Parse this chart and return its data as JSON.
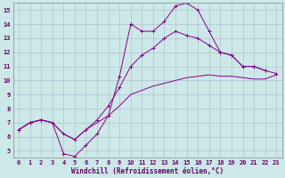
{
  "xlabel": "Windchill (Refroidissement éolien,°C)",
  "bg_color": "#cce8e8",
  "line_color": "#880088",
  "grid_color": "#aabbcc",
  "xlim": [
    -0.5,
    23.5
  ],
  "ylim": [
    4.5,
    15.5
  ],
  "xticks": [
    0,
    1,
    2,
    3,
    4,
    5,
    6,
    7,
    8,
    9,
    10,
    11,
    12,
    13,
    14,
    15,
    16,
    17,
    18,
    19,
    20,
    21,
    22,
    23
  ],
  "yticks": [
    5,
    6,
    7,
    8,
    9,
    10,
    11,
    12,
    13,
    14,
    15
  ],
  "line1_x": [
    0,
    1,
    2,
    3,
    4,
    5,
    6,
    7,
    8,
    9,
    10,
    11,
    12,
    13,
    14,
    15,
    16,
    17,
    18,
    19,
    20,
    21,
    22
  ],
  "line1_y": [
    6.5,
    7.0,
    7.2,
    7.0,
    4.8,
    4.6,
    5.4,
    6.2,
    7.5,
    10.3,
    14.0,
    13.5,
    13.5,
    14.2,
    15.3,
    15.5,
    15.0,
    13.5,
    12.0,
    11.8,
    11.0,
    11.0,
    10.7
  ],
  "line2_x": [
    0,
    1,
    2,
    3,
    4,
    5,
    6,
    7,
    8,
    9,
    10,
    11,
    12,
    13,
    14,
    15,
    16,
    17,
    18,
    19,
    20,
    21,
    22,
    23
  ],
  "line2_y": [
    6.5,
    7.0,
    7.2,
    7.0,
    6.2,
    5.8,
    6.5,
    7.2,
    8.2,
    9.5,
    11.0,
    11.8,
    12.3,
    13.0,
    13.5,
    13.2,
    13.0,
    12.5,
    12.0,
    11.8,
    11.0,
    11.0,
    10.7,
    10.5
  ],
  "line3_x": [
    0,
    1,
    2,
    3,
    4,
    5,
    6,
    7,
    8,
    9,
    10,
    11,
    12,
    13,
    14,
    15,
    16,
    17,
    18,
    19,
    20,
    21,
    22,
    23
  ],
  "line3_y": [
    6.5,
    7.0,
    7.2,
    7.0,
    6.2,
    5.8,
    6.5,
    7.0,
    7.5,
    8.2,
    9.0,
    9.3,
    9.6,
    9.8,
    10.0,
    10.2,
    10.3,
    10.4,
    10.3,
    10.3,
    10.2,
    10.1,
    10.1,
    10.4
  ],
  "xlabel_color": "#660066",
  "xlabel_fontsize": 5.5,
  "tick_fontsize": 5.0,
  "tick_color": "#660066",
  "figsize": [
    3.2,
    2.0
  ],
  "dpi": 100
}
